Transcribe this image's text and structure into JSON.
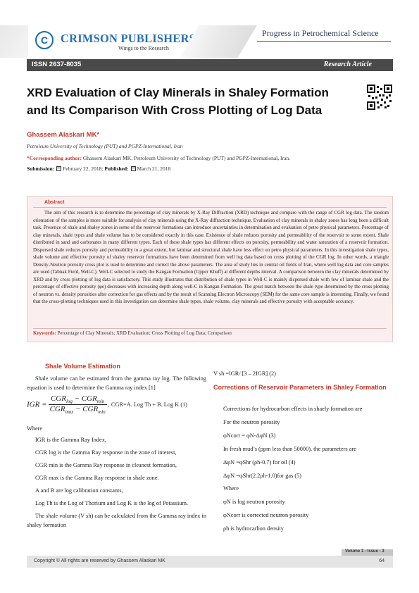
{
  "header": {
    "logo_letter": "C",
    "publisher": "CRIMSON PUBLISHERS",
    "tagline": "Wings to the Research",
    "journal": "Progress in Petrochemical Science",
    "issn": "ISSN 2637-8035",
    "article_type": "Research Article"
  },
  "article": {
    "title_line1": "XRD Evaluation of Clay Minerals in Shaley Formation",
    "title_line2": "and Its Comparison With Cross Plotting of Log Data",
    "author": "Ghassem Alaskari MK*",
    "affiliation": "Petroleum University of Technology (PUT) and PGPZ-International, Iran",
    "corresponding_label": "*Corresponding author:",
    "corresponding_text": "Ghassem Alaskari MK, Petroleum University of Technology (PUT) and PGPZ-International, Iran.",
    "submission_label": "Submission:",
    "submission_date": "February 22, 2018;",
    "published_label": "Published:",
    "published_date": "March 21, 2018"
  },
  "abstract": {
    "heading": "Abstract",
    "text": "The aim of this research is to determine the percentage of clay minerals by X-Ray Diffraction (XRD) technique and compare with the range of CGR log data. The random orientation of the samples is more suitable for analysis of clay minerals using the X-Ray diffraction technique. Evaluation of clay minerals in shaley zones has long been a difficult task. Presence of shale and shaley zones in some of the reservoir formations can introduce uncertainties in determination and evaluation of petro physical parameters. Percentage of clay minerals, shale types and shale volume has to be considered exactly in this case. Existence of shale reduces porosity and permeability of the reservoir to some extent. Shale distributed in sand and carbonates in many different types. Each of these shale types has different effects on porosity, permeability and water saturation of a reservoir formation. Dispersed shale reduces porosity and permeability to a great extent, but laminar and structural shale have less effect on petro physical parameters. In this investigation shale types, shale volume and effective porosity of shaley reservoir formations have been determined from well log data based on cross plotting of the CGR log. In other words, a triangle Density-Neutron porosity cross plot is used to determine and correct the above parameters. The area of study lies in central oil fields of Iran, where well log data and core samples are used (Tabnak Field, Well-C). Well-C selected to study the Kangan Formation (Upper Khuff) at different depths interval. A comparison between the clay minerals determined by XRD and by cross plotting of log data is satisfactory. This study illustrates that distribution of shale types in Well-C is mainly dispersed shale with few of laminar shale and the percentage of effective porosity (φe) decreases with increasing depth along well-C in Kangan Formation. The great match between the shale type determined by the cross plotting of neutron vs. density porosities after correction for gas effects and by the result of Scanning Electron Microscopy (SEM) for the same core sample is interesting. Finally, we found that the cross-plotting techniques used in this investigation can determine shale types, shale volume, clay minerals and effective porosity with acceptable accuracy.",
    "keywords_label": "Keywords:",
    "keywords": "Percentage of Clay Minerals; XRD Evaluation; Cross Plotting of Log Data; Comparison"
  },
  "left_column": {
    "heading": "Shale Volume Estimation",
    "intro": "Shale volume can be estimated from the gamma ray log. The following equation is used to determine the Gamma ray index [1]",
    "eq_lhs": "IGR =",
    "eq_num": "CGR",
    "eq_num_sub1": "log",
    "eq_num_sub2": "min",
    "eq_den": "CGR",
    "eq_den_sub1": "max",
    "eq_den_sub2": "min",
    "eq_tail": ", CGR=A. Log Th + B. Log K (1)",
    "where": "Where",
    "defs": [
      "IGR is the Gamma Ray Index,",
      "CGR log is the Gamma Ray response in the zone of interest,",
      "CGR min is the Gamma Ray response in cleanest formation,",
      "CGR max is the Gamma Ray response in shale zone.",
      "A and B are log calibration constants,",
      "Log Th is the Log of Thorium and Log K is the log of Potassium."
    ],
    "closing": "The shale volume (V sh) can be calculated from the Gamma ray index in shaley formation"
  },
  "right_column": {
    "eq2": "V sh =IGR/ [3 – 2IGR] (2)",
    "heading": "Corrections of Reservoir Parameters in Shaley Formation",
    "lines": [
      "Corrections for hydrocarbon effects in shaely formation are",
      "For the neutron porosity",
      "φNcorr = φN-ΔφN (3)",
      "In fresh mud’s (ppm less than 50000), the parameters are",
      "ΔφN =φShr (ρh-0.7) for oil (4)",
      "ΔφN =φShr(2.2ρh-1.0)for gas (5)",
      "Where",
      "φN is log neutron porosity",
      "φNcorr is corrected neutron porosity",
      "ρh is hydrocarbon density"
    ]
  },
  "footer": {
    "volume": "Volume 1 - Issue - 3",
    "copyright": "Copyright © All rights are reserved by Ghassem Alaskari MK",
    "page": "64"
  }
}
